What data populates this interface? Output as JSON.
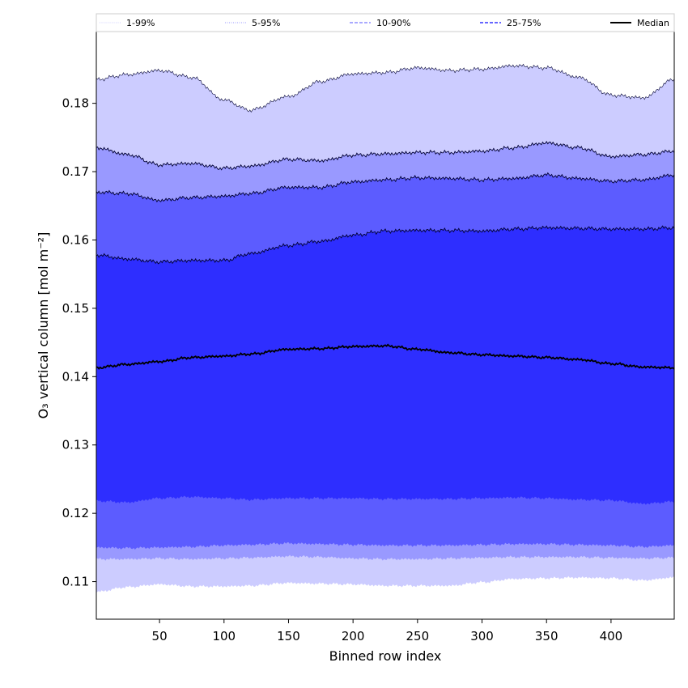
{
  "chart_data": {
    "type": "area",
    "xlabel": "Binned row index",
    "ylabel": "O₃ vertical column [mol m⁻²]",
    "xlim": [
      1,
      449
    ],
    "ylim": [
      0.1045,
      0.1905
    ],
    "x_ticks": [
      50,
      100,
      150,
      200,
      250,
      300,
      350,
      400
    ],
    "y_ticks": [
      0.11,
      0.12,
      0.13,
      0.14,
      0.15,
      0.16,
      0.17,
      0.18
    ],
    "x_tick_labels": [
      "50",
      "100",
      "150",
      "200",
      "250",
      "300",
      "350",
      "400"
    ],
    "y_tick_labels": [
      "0.11",
      "0.12",
      "0.13",
      "0.14",
      "0.15",
      "0.16",
      "0.17",
      "0.18"
    ],
    "grid": false,
    "legend_position": "top, spanning plot width",
    "x": [
      1,
      25,
      50,
      75,
      100,
      120,
      150,
      175,
      200,
      225,
      250,
      275,
      300,
      325,
      350,
      375,
      400,
      425,
      449
    ],
    "bands": [
      {
        "name": "1-99%",
        "color": "#ccccff",
        "lower": [
          0.1085,
          0.1092,
          0.1096,
          0.1093,
          0.1093,
          0.1094,
          0.1098,
          0.1097,
          0.1096,
          0.1094,
          0.1094,
          0.1094,
          0.1099,
          0.1104,
          0.1105,
          0.1106,
          0.1105,
          0.1102,
          0.1106
        ],
        "upper": [
          0.1835,
          0.1842,
          0.1848,
          0.1838,
          0.1805,
          0.179,
          0.181,
          0.1832,
          0.1843,
          0.1845,
          0.1852,
          0.1848,
          0.185,
          0.1855,
          0.1852,
          0.1838,
          0.1812,
          0.1808,
          0.1835
        ]
      },
      {
        "name": "5-95%",
        "color": "#9999ff",
        "lower": [
          0.1133,
          0.1133,
          0.1134,
          0.1133,
          0.1134,
          0.1135,
          0.1137,
          0.1136,
          0.1134,
          0.1133,
          0.1133,
          0.1134,
          0.1135,
          0.1136,
          0.1136,
          0.1136,
          0.1135,
          0.1134,
          0.1135
        ],
        "upper": [
          0.1735,
          0.1725,
          0.171,
          0.1712,
          0.1705,
          0.1708,
          0.1718,
          0.1716,
          0.1724,
          0.1726,
          0.1728,
          0.1728,
          0.173,
          0.1735,
          0.1742,
          0.1735,
          0.1722,
          0.1725,
          0.173
        ]
      },
      {
        "name": "10-90%",
        "color": "#5c5cff",
        "lower": [
          0.115,
          0.1149,
          0.115,
          0.1151,
          0.1153,
          0.1154,
          0.1156,
          0.1155,
          0.1154,
          0.1153,
          0.1153,
          0.1153,
          0.1154,
          0.1155,
          0.1155,
          0.1154,
          0.1153,
          0.1151,
          0.1153
        ],
        "upper": [
          0.167,
          0.1668,
          0.1658,
          0.1662,
          0.1664,
          0.1668,
          0.1677,
          0.1677,
          0.1685,
          0.1688,
          0.1691,
          0.169,
          0.1688,
          0.169,
          0.1695,
          0.169,
          0.1686,
          0.1688,
          0.1695
        ]
      },
      {
        "name": "25-75%",
        "color": "#2e2eff",
        "lower": [
          0.1218,
          0.1216,
          0.1222,
          0.1224,
          0.1222,
          0.122,
          0.1222,
          0.1222,
          0.1222,
          0.1221,
          0.1221,
          0.1221,
          0.1222,
          0.1223,
          0.1222,
          0.122,
          0.1219,
          0.1214,
          0.1217
        ],
        "upper": [
          0.1578,
          0.1572,
          0.1568,
          0.157,
          0.157,
          0.158,
          0.1592,
          0.1598,
          0.1607,
          0.1613,
          0.1614,
          0.1614,
          0.1613,
          0.1616,
          0.1618,
          0.1617,
          0.1616,
          0.1616,
          0.1618
        ]
      }
    ],
    "median": {
      "name": "Median",
      "color": "#000000",
      "values": [
        0.1413,
        0.1418,
        0.1422,
        0.1428,
        0.143,
        0.1433,
        0.144,
        0.1441,
        0.1444,
        0.1445,
        0.144,
        0.1435,
        0.1432,
        0.143,
        0.1428,
        0.1425,
        0.1419,
        0.1414,
        0.1413
      ]
    },
    "legend": [
      {
        "label": "1-99%",
        "color": "#ccccff",
        "style": "dotted"
      },
      {
        "label": "5-95%",
        "color": "#9999ff",
        "style": "dotted"
      },
      {
        "label": "10-90%",
        "color": "#7777ff",
        "style": "dashed"
      },
      {
        "label": "25-75%",
        "color": "#3333ff",
        "style": "dashed"
      },
      {
        "label": "Median",
        "color": "#000000",
        "style": "solid"
      }
    ]
  }
}
